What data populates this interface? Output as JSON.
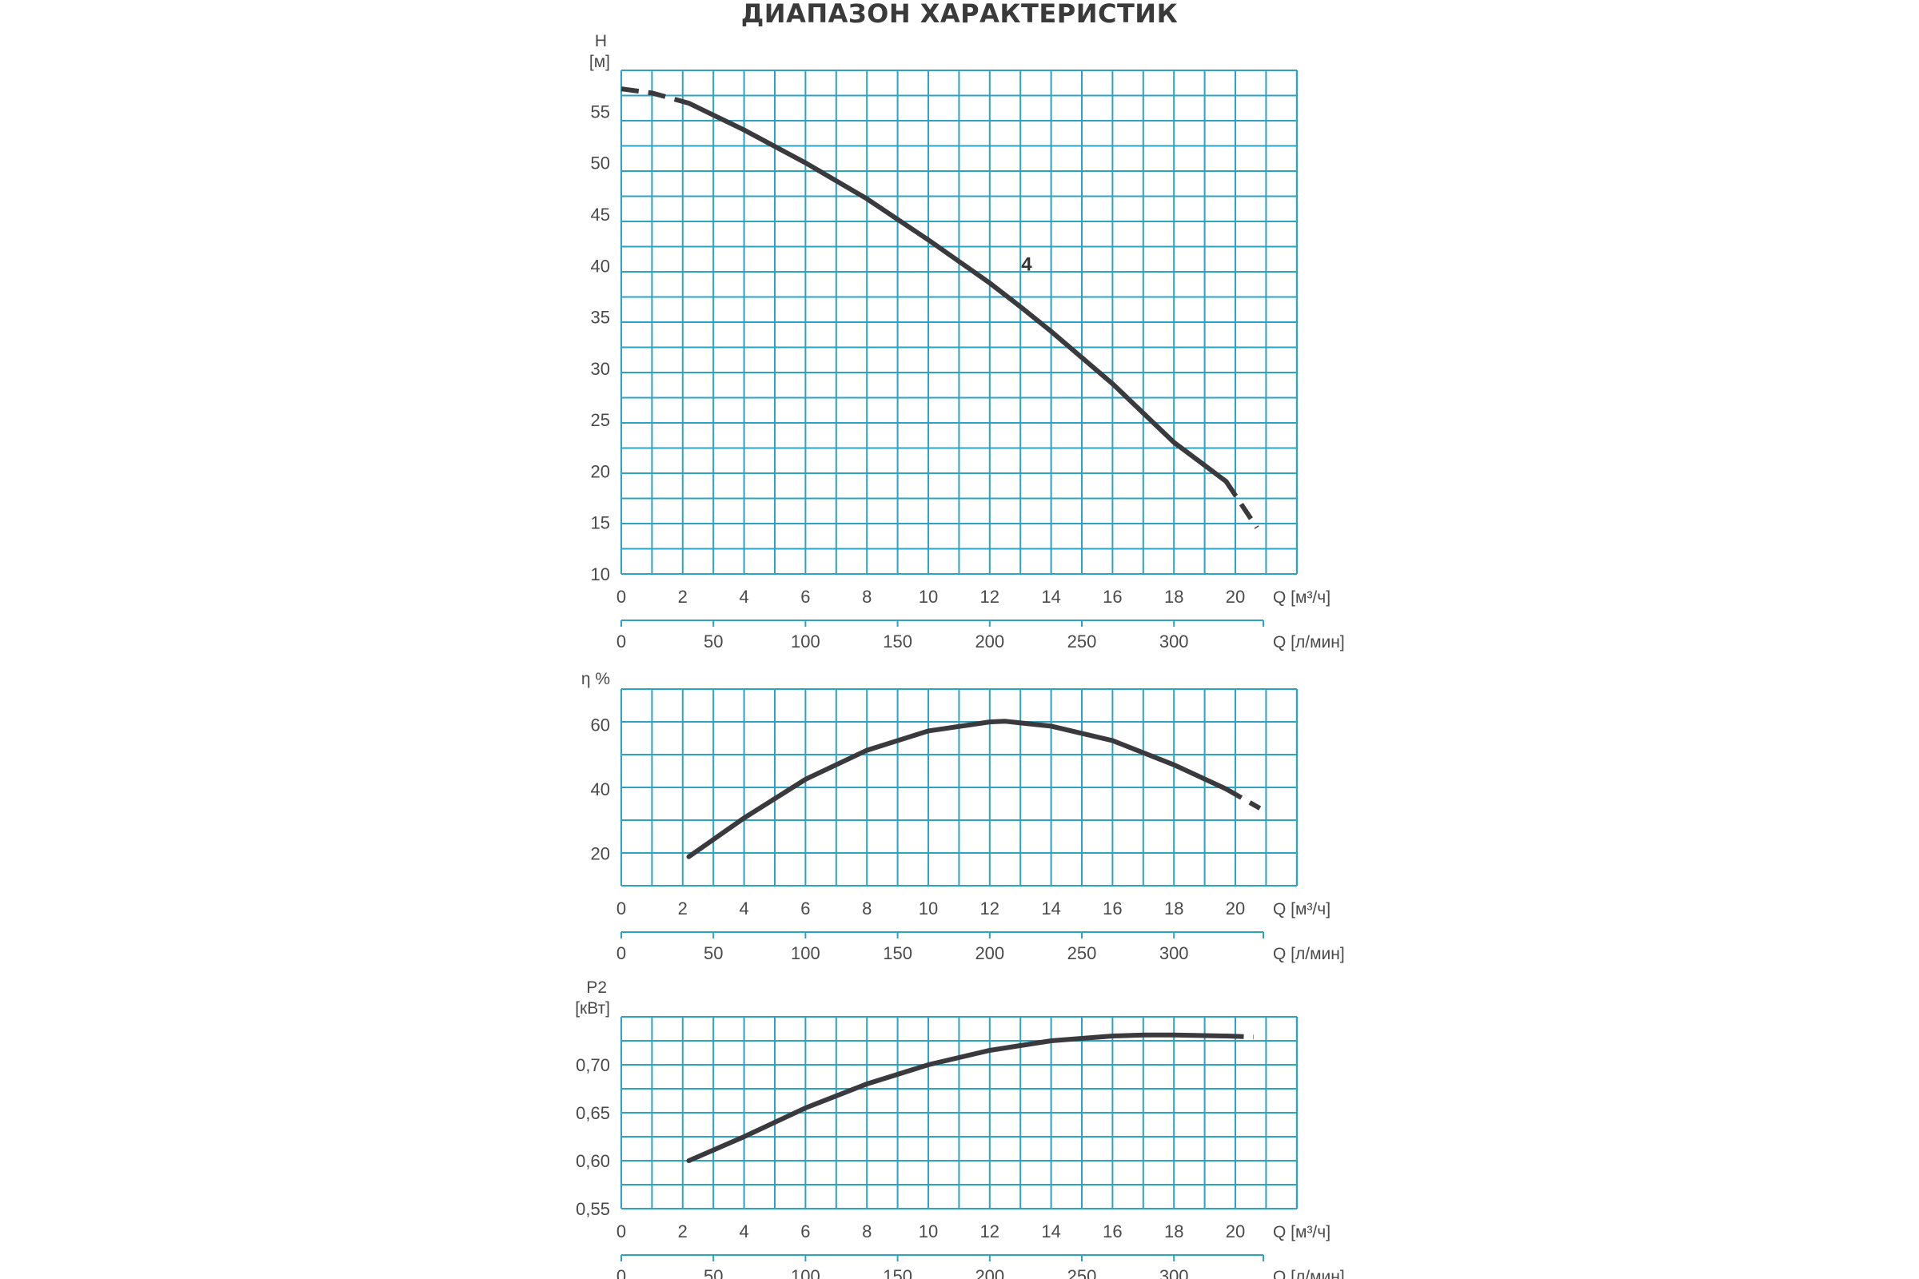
{
  "title": "ДИАПАЗОН ХАРАКТЕРИСТИК",
  "x_unit_flow_m3h": "Q [м³/ч]",
  "x_unit_flow_lmin": "Q [л/мин]",
  "x_ticks_m3h": [
    "0",
    "2",
    "4",
    "6",
    "8",
    "10",
    "12",
    "14",
    "16",
    "18",
    "20"
  ],
  "x_ticks_lmin": [
    "0",
    "50",
    "100",
    "150",
    "200",
    "250",
    "300"
  ],
  "colors": {
    "grid": "#2aa3c4",
    "curve": "#3a3a3e"
  },
  "chart_data": [
    {
      "type": "line",
      "ylabel": "H",
      "yunit": "[м]",
      "xlabel": "Q [м³/ч]",
      "xlim": [
        0,
        22
      ],
      "ylim": [
        10,
        59
      ],
      "y_ticks": [
        "10",
        "15",
        "20",
        "25",
        "30",
        "35",
        "40",
        "45",
        "50",
        "55"
      ],
      "grid": true,
      "series": [
        {
          "name": "4",
          "x": [
            0,
            1,
            2.2,
            4,
            6,
            8,
            10,
            12,
            13,
            14,
            16,
            18,
            19.7,
            20.7
          ],
          "y": [
            57.2,
            56.8,
            55.8,
            53.2,
            50.0,
            46.5,
            42.5,
            38.3,
            36.0,
            33.6,
            28.5,
            22.8,
            19.0,
            14.5
          ],
          "solid_range": [
            2.2,
            19.7
          ]
        }
      ]
    },
    {
      "type": "line",
      "ylabel": "η %",
      "xlabel": "Q [м³/ч]",
      "xlim": [
        0,
        22
      ],
      "ylim": [
        10,
        71
      ],
      "y_ticks": [
        "20",
        "40",
        "60"
      ],
      "grid": true,
      "series": [
        {
          "x": [
            2.2,
            4,
            6,
            8,
            10,
            12,
            12.5,
            14,
            16,
            18,
            19.7,
            20.8
          ],
          "y": [
            19,
            31,
            43,
            52,
            58,
            60.8,
            61,
            59.5,
            55,
            47.5,
            40,
            34
          ],
          "solid_range": [
            2.2,
            19.7
          ]
        }
      ]
    },
    {
      "type": "line",
      "ylabel": "P2",
      "yunit": "[кВт]",
      "xlabel": "Q [м³/ч]",
      "xlim": [
        0,
        22
      ],
      "ylim": [
        0.55,
        0.75
      ],
      "y_ticks": [
        "0,55",
        "0,60",
        "0,65",
        "0,70"
      ],
      "grid": true,
      "series": [
        {
          "x": [
            2.2,
            4,
            6,
            8,
            10,
            12,
            14,
            16,
            17,
            18,
            19.7,
            20.6
          ],
          "y": [
            0.6,
            0.625,
            0.655,
            0.68,
            0.7,
            0.715,
            0.725,
            0.73,
            0.731,
            0.731,
            0.73,
            0.729
          ],
          "solid_range": [
            2.2,
            19.7
          ]
        }
      ]
    }
  ]
}
